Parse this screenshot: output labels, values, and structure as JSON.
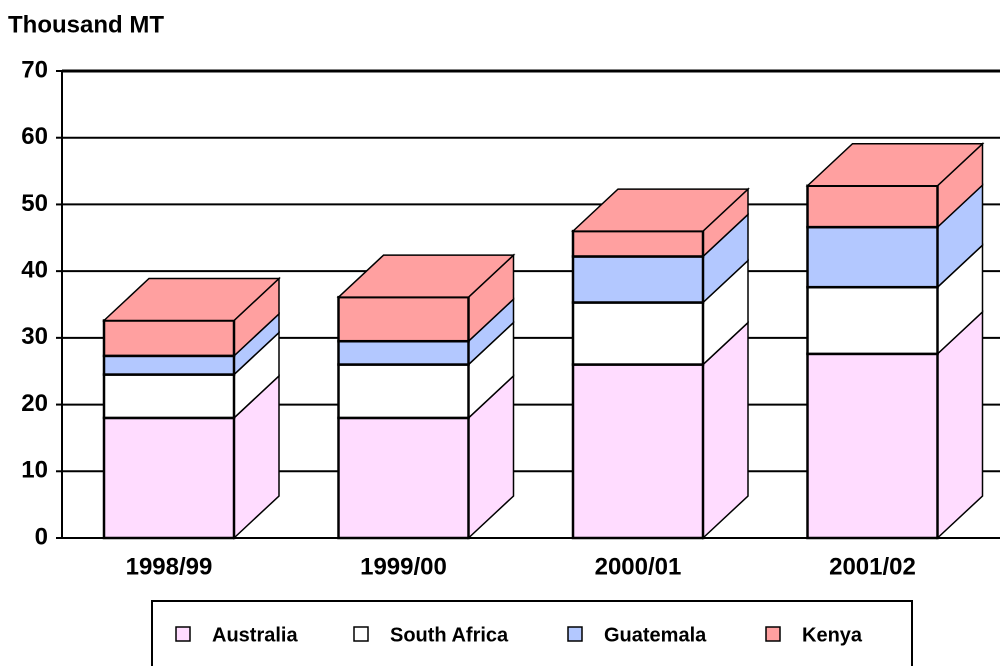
{
  "chart_data": {
    "type": "bar3d_stacked",
    "title": "Thousand MT",
    "categories": [
      "1998/99",
      "1999/00",
      "2000/01",
      "2001/02"
    ],
    "series": [
      {
        "name": "Australia",
        "color": "#ffdcff",
        "values": [
          18,
          18,
          26,
          27.6
        ]
      },
      {
        "name": "South Africa",
        "color": "#ffffff",
        "values": [
          6.5,
          8,
          9.3,
          10
        ]
      },
      {
        "name": "Guatemala",
        "color": "#b3c8ff",
        "values": [
          2.8,
          3.5,
          6.9,
          9
        ]
      },
      {
        "name": "Kenya",
        "color": "#ffa0a0",
        "values": [
          5.3,
          6.6,
          3.8,
          6.2
        ]
      }
    ],
    "ylim": [
      0,
      70
    ],
    "yticks": [
      0,
      10,
      20,
      30,
      40,
      50,
      60,
      70
    ],
    "grid": true
  }
}
